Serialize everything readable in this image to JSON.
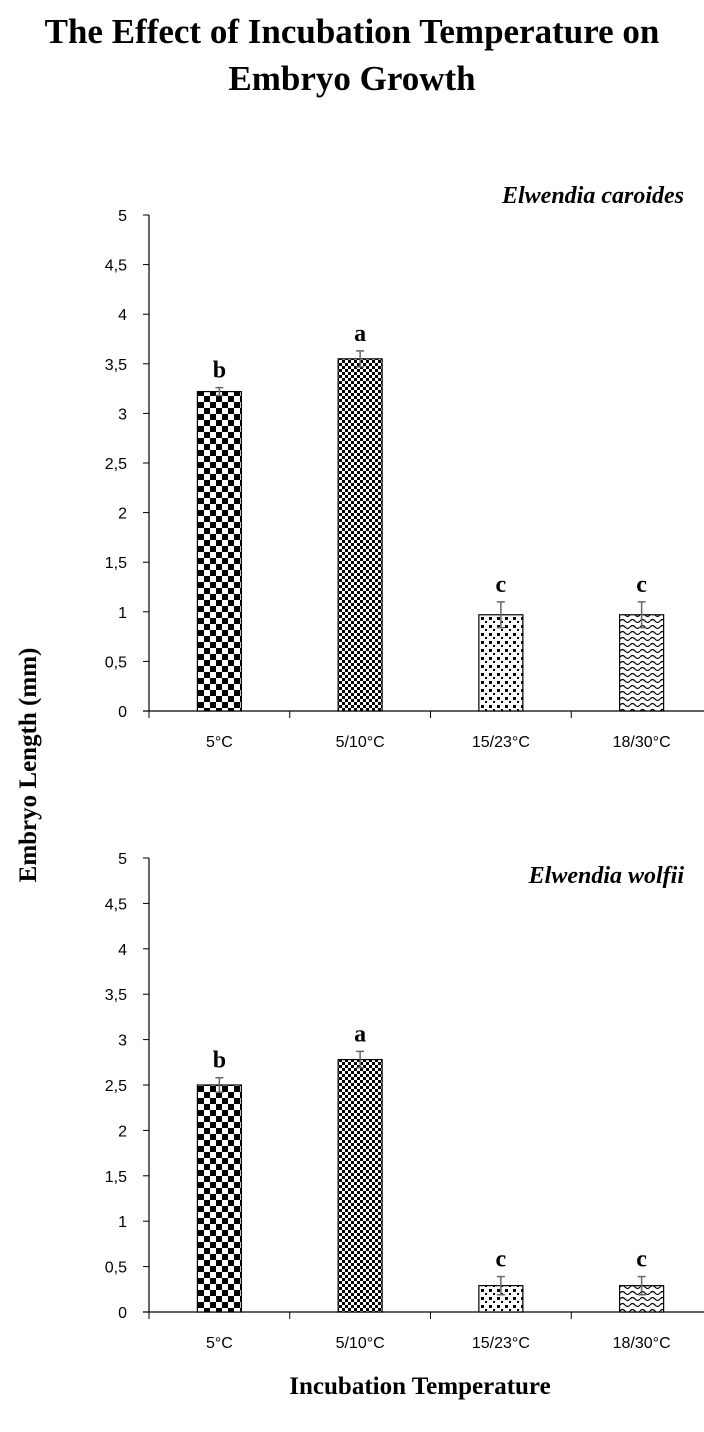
{
  "title": "The Effect of Incubation Temperature on Embryo Growth",
  "chart_data": {
    "type": "bar",
    "xlabel": "Incubation Temperature",
    "ylabel": "Embryo Length (mm)",
    "categories": [
      "5°C",
      "5/10°C",
      "15/23°C",
      "18/30°C"
    ],
    "ylim": [
      0,
      5
    ],
    "yticks": [
      "0",
      "0,5",
      "1",
      "1,5",
      "2",
      "2,5",
      "3",
      "3,5",
      "4",
      "4,5",
      "5"
    ],
    "grid": false,
    "panels": [
      {
        "species": "Elwendia caroides",
        "values": [
          3.22,
          3.55,
          0.97,
          0.97
        ],
        "errors": [
          0.04,
          0.08,
          0.13,
          0.13
        ],
        "significance": [
          "b",
          "a",
          "c",
          "c"
        ]
      },
      {
        "species": "Elwendia wolfii",
        "values": [
          2.5,
          2.78,
          0.29,
          0.29
        ],
        "errors": [
          0.08,
          0.09,
          0.1,
          0.1
        ],
        "significance": [
          "b",
          "a",
          "c",
          "c"
        ]
      }
    ]
  }
}
